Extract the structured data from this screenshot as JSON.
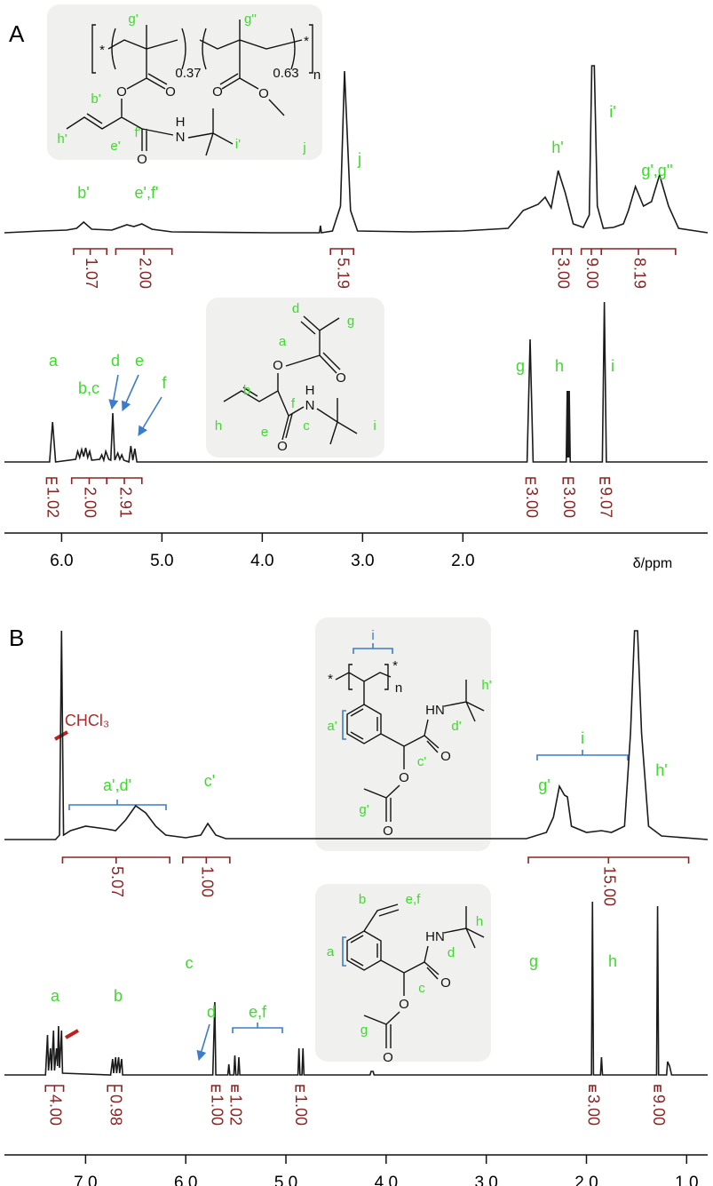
{
  "chart_data": [
    {
      "type": "line",
      "label": "A",
      "xlim": [
        6.57,
        -0.44
      ],
      "xticks": [
        {
          "value": 6,
          "label": "6.0"
        },
        {
          "value": 5,
          "label": "5.0"
        },
        {
          "value": 4,
          "label": "4.0"
        },
        {
          "value": 3,
          "label": "3.0"
        },
        {
          "value": 2,
          "label": "2.0"
        }
      ],
      "xlabel": "δ/ppm",
      "integral_color": "#8b2323",
      "series": [
        {
          "color": "#1a1a1a",
          "x": [
            6.57,
            6.2,
            5.95,
            5.85,
            5.78,
            5.7,
            5.5,
            5.35,
            5.28,
            5.2,
            5.1,
            4.9,
            3.9,
            3.43,
            3.42,
            3.41,
            3.3,
            3.22,
            3.18,
            3.12,
            3.05,
            2.5,
            2.0,
            1.55,
            1.45,
            1.4,
            1.25,
            1.18,
            1.12,
            1.05,
            0.98,
            0.9,
            0.8,
            0.74,
            0.715,
            0.69,
            0.66,
            0.6,
            0.5,
            0.4,
            0.35,
            0.28,
            0.2,
            0.12,
            0.04,
            -0.05,
            -0.15,
            -0.44
          ],
          "values": [
            0,
            2,
            3,
            5,
            12,
            4,
            3,
            9,
            7,
            10,
            4,
            1,
            0,
            0,
            8,
            0,
            2,
            30,
            182,
            25,
            2,
            1,
            2,
            5,
            18,
            25,
            32,
            40,
            28,
            70,
            45,
            10,
            6,
            20,
            188,
            188,
            30,
            5,
            6,
            10,
            25,
            52,
            30,
            35,
            65,
            30,
            5,
            0
          ],
          "integrals": [
            {
              "range": [
                5.88,
                5.55
              ],
              "value": 1.07
            },
            {
              "range": [
                5.46,
                4.9
              ],
              "value": 2,
              "label": "2.00"
            },
            {
              "range": [
                3.32,
                3.09
              ],
              "value": 5.19
            },
            {
              "range": [
                1.1,
                0.92
              ],
              "value": 3,
              "label": "3.00"
            },
            {
              "range": [
                0.82,
                0.62
              ],
              "value": 9,
              "label": "9.00"
            },
            {
              "range": [
                0.62,
                -0.12
              ],
              "value": 8.19
            }
          ],
          "annotations": [
            {
              "text": "b'",
              "color": "#3ddb2b"
            },
            {
              "text": "e',f'",
              "color": "#3ddb2b"
            },
            {
              "text": "j",
              "color": "#3ddb2b"
            },
            {
              "text": "h'",
              "color": "#3ddb2b"
            },
            {
              "text": "i'",
              "color": "#3ddb2b"
            },
            {
              "text": "g',g''",
              "color": "#3ddb2b"
            }
          ]
        },
        {
          "color": "#1a1a1a",
          "x": [
            6.57,
            6.12,
            6.09,
            6.06,
            5.86,
            5.84,
            5.82,
            5.8,
            5.78,
            5.76,
            5.74,
            5.72,
            5.7,
            5.62,
            5.6,
            5.58,
            5.56,
            5.53,
            5.51,
            5.49,
            5.47,
            5.44,
            5.42,
            5.4,
            5.38,
            5.33,
            5.31,
            5.29,
            5.27,
            5.25,
            1.36,
            1.33,
            1.3,
            0.97,
            0.96,
            0.955,
            0.95,
            0.945,
            0.94,
            0.93,
            0.61,
            0.59,
            0.57,
            -0.44
          ],
          "values": [
            0,
            0,
            45,
            0,
            3,
            12,
            5,
            14,
            6,
            16,
            5,
            12,
            2,
            3,
            8,
            2,
            12,
            3,
            2,
            55,
            2,
            10,
            3,
            8,
            2,
            0,
            18,
            2,
            15,
            0,
            0,
            138,
            0,
            0,
            80,
            5,
            80,
            5,
            80,
            0,
            0,
            180,
            0,
            0
          ],
          "integrals": [
            {
              "range": [
                6.15,
                6.05
              ],
              "value": 1.02
            },
            {
              "range": [
                5.9,
                5.55
              ],
              "value": 2,
              "label": "2.00"
            },
            {
              "range": [
                5.55,
                5.2
              ],
              "value": 2.91
            },
            {
              "range": [
                1.37,
                1.28
              ],
              "value": 3,
              "label": "3.00"
            },
            {
              "range": [
                1.0,
                0.9
              ],
              "value": 3,
              "label": "3.00"
            },
            {
              "range": [
                0.63,
                0.54
              ],
              "value": 9.07
            }
          ],
          "annotations": [
            {
              "text": "a",
              "color": "#3ddb2b"
            },
            {
              "text": "b,c",
              "color": "#3ddb2b"
            },
            {
              "text": "d",
              "color": "#3ddb2b"
            },
            {
              "text": "e",
              "color": "#3ddb2b"
            },
            {
              "text": "f",
              "color": "#3ddb2b"
            },
            {
              "text": "g",
              "color": "#3ddb2b"
            },
            {
              "text": "h",
              "color": "#3ddb2b"
            },
            {
              "text": "i",
              "color": "#3ddb2b"
            }
          ]
        }
      ]
    },
    {
      "type": "line",
      "label": "B",
      "xlim": [
        7.81,
        0.79
      ],
      "xticks": [
        {
          "value": 7,
          "label": "7.0"
        },
        {
          "value": 6,
          "label": "6.0"
        },
        {
          "value": 5,
          "label": "5.0"
        },
        {
          "value": 4,
          "label": "4.0"
        },
        {
          "value": 3,
          "label": "3.0"
        },
        {
          "value": 2,
          "label": "2.0"
        },
        {
          "value": 1,
          "label": "1.0"
        }
      ],
      "integral_color": "#8b2323",
      "series": [
        {
          "color": "#1a1a1a",
          "x": [
            7.81,
            7.3,
            7.26,
            7.24,
            7.22,
            7.15,
            7.0,
            6.8,
            6.7,
            6.6,
            6.5,
            6.4,
            6.3,
            6.2,
            6.0,
            5.85,
            5.78,
            5.7,
            5.6,
            2.6,
            2.4,
            2.33,
            2.27,
            2.22,
            2.19,
            2.15,
            2.0,
            1.85,
            1.75,
            1.62,
            1.56,
            1.52,
            1.49,
            1.45,
            1.38,
            1.25,
            0.79
          ],
          "values": [
            0,
            0,
            5,
            235,
            5,
            10,
            15,
            12,
            10,
            22,
            38,
            30,
            15,
            5,
            2,
            5,
            18,
            5,
            1,
            1,
            8,
            25,
            60,
            50,
            48,
            15,
            8,
            10,
            8,
            15,
            120,
            235,
            235,
            120,
            15,
            4,
            0
          ],
          "integrals": [
            {
              "range": [
                7.23,
                6.16
              ],
              "value": 5.07
            },
            {
              "range": [
                6.03,
                5.56
              ],
              "value": 1,
              "label": "1.00"
            },
            {
              "range": [
                2.58,
                0.98
              ],
              "value": 15,
              "label": "15.00"
            }
          ],
          "annotations": [
            {
              "text": "CHCl₃",
              "color": "#b22a2a"
            },
            {
              "text": "a',d'",
              "color": "#3ddb2b"
            },
            {
              "text": "c'",
              "color": "#3ddb2b"
            },
            {
              "text": "g'",
              "color": "#3ddb2b"
            },
            {
              "text": "i",
              "color": "#3ddb2b"
            },
            {
              "text": "h'",
              "color": "#3ddb2b"
            }
          ]
        },
        {
          "color": "#1a1a1a",
          "x": [
            7.81,
            7.4,
            7.38,
            7.37,
            7.35,
            7.34,
            7.32,
            7.31,
            7.29,
            7.28,
            7.27,
            7.26,
            7.24,
            7.23,
            6.75,
            6.73,
            6.72,
            6.7,
            6.69,
            6.67,
            6.66,
            6.64,
            6.63,
            5.73,
            5.71,
            5.7,
            5.58,
            5.57,
            5.56,
            5.52,
            5.51,
            5.5,
            5.48,
            5.47,
            5.46,
            4.88,
            4.87,
            4.86,
            4.84,
            4.83,
            4.82,
            4.16,
            4.15,
            4.13,
            4.12,
            1.95,
            1.94,
            1.93,
            1.86,
            1.85,
            1.84,
            1.3,
            1.29,
            1.28,
            1.2,
            1.19,
            1.17,
            1.15,
            0.79
          ],
          "values": [
            0,
            0,
            45,
            5,
            30,
            5,
            50,
            5,
            30,
            10,
            55,
            8,
            50,
            2,
            0,
            18,
            2,
            20,
            2,
            20,
            2,
            18,
            0,
            0,
            82,
            0,
            0,
            12,
            0,
            0,
            22,
            0,
            0,
            20,
            0,
            0,
            30,
            0,
            0,
            30,
            0,
            0,
            4,
            4,
            0,
            0,
            195,
            0,
            0,
            20,
            0,
            0,
            190,
            0,
            0,
            15,
            10,
            0,
            0
          ],
          "integrals": [
            {
              "range": [
                7.4,
                7.22
              ],
              "value": 4,
              "label": "4.00"
            },
            {
              "range": [
                6.78,
                6.64
              ],
              "value": 0.98
            },
            {
              "range": [
                5.74,
                5.66
              ],
              "value": 1,
              "label": "1.00"
            },
            {
              "range": [
                5.54,
                5.48
              ],
              "value": 1.02
            },
            {
              "range": [
                4.9,
                4.82
              ],
              "value": 1,
              "label": "1.00"
            },
            {
              "range": [
                1.97,
                1.91
              ],
              "value": 3,
              "label": "3.00"
            },
            {
              "range": [
                1.32,
                1.26
              ],
              "value": 9,
              "label": "9.00"
            }
          ],
          "annotations": [
            {
              "text": "a",
              "color": "#3ddb2b"
            },
            {
              "text": "b",
              "color": "#3ddb2b"
            },
            {
              "text": "c",
              "color": "#3ddb2b"
            },
            {
              "text": "d",
              "color": "#3ddb2b"
            },
            {
              "text": "e,f",
              "color": "#3ddb2b"
            },
            {
              "text": "g",
              "color": "#3ddb2b"
            },
            {
              "text": "h",
              "color": "#3ddb2b"
            }
          ]
        }
      ]
    }
  ],
  "structures": [
    {
      "labels": [
        {
          "text": "*",
          "color": "#111"
        },
        {
          "text": "g'",
          "color": "#3ddb2b"
        },
        {
          "text": "g''",
          "color": "#3ddb2b"
        },
        {
          "text": "*",
          "color": "#111"
        },
        {
          "text": "0.37",
          "color": "#111"
        },
        {
          "text": "0.63",
          "color": "#111"
        },
        {
          "text": "n",
          "color": "#111"
        },
        {
          "text": "O",
          "color": "#111"
        },
        {
          "text": "O",
          "color": "#111"
        },
        {
          "text": "O",
          "color": "#111"
        },
        {
          "text": "O",
          "color": "#111"
        },
        {
          "text": "b'",
          "color": "#3ddb2b"
        },
        {
          "text": "h'",
          "color": "#3ddb2b"
        },
        {
          "text": "e'",
          "color": "#3ddb2b"
        },
        {
          "text": "f'",
          "color": "#3ddb2b"
        },
        {
          "text": "H",
          "color": "#111"
        },
        {
          "text": "N",
          "color": "#111"
        },
        {
          "text": "i'",
          "color": "#3ddb2b"
        },
        {
          "text": "j",
          "color": "#3ddb2b"
        },
        {
          "text": "O",
          "color": "#111"
        }
      ]
    },
    {
      "labels": [
        {
          "text": "d",
          "color": "#3ddb2b"
        },
        {
          "text": "g",
          "color": "#3ddb2b"
        },
        {
          "text": "a",
          "color": "#3ddb2b"
        },
        {
          "text": "O",
          "color": "#111"
        },
        {
          "text": "O",
          "color": "#111"
        },
        {
          "text": "b",
          "color": "#3ddb2b"
        },
        {
          "text": "H",
          "color": "#111"
        },
        {
          "text": "N",
          "color": "#111"
        },
        {
          "text": "f",
          "color": "#3ddb2b"
        },
        {
          "text": "c",
          "color": "#3ddb2b"
        },
        {
          "text": "h",
          "color": "#3ddb2b"
        },
        {
          "text": "e",
          "color": "#3ddb2b"
        },
        {
          "text": "O",
          "color": "#111"
        },
        {
          "text": "i",
          "color": "#3ddb2b"
        }
      ]
    },
    {
      "labels": [
        {
          "text": "*",
          "color": "#111"
        },
        {
          "text": "*",
          "color": "#111"
        },
        {
          "text": "n",
          "color": "#111"
        },
        {
          "text": "i",
          "color": "#3d7cc9"
        },
        {
          "text": "a'",
          "color": "#3ddb2b"
        },
        {
          "text": "h'",
          "color": "#3ddb2b"
        },
        {
          "text": "d'",
          "color": "#3ddb2b"
        },
        {
          "text": "HN",
          "color": "#111"
        },
        {
          "text": "c'",
          "color": "#3ddb2b"
        },
        {
          "text": "O",
          "color": "#111"
        },
        {
          "text": "O",
          "color": "#111"
        },
        {
          "text": "g'",
          "color": "#3ddb2b"
        },
        {
          "text": "O",
          "color": "#111"
        }
      ]
    },
    {
      "labels": [
        {
          "text": "b",
          "color": "#3ddb2b"
        },
        {
          "text": "e,f",
          "color": "#3ddb2b"
        },
        {
          "text": "h",
          "color": "#3ddb2b"
        },
        {
          "text": "d",
          "color": "#3ddb2b"
        },
        {
          "text": "HN",
          "color": "#111"
        },
        {
          "text": "a",
          "color": "#3ddb2b"
        },
        {
          "text": "c",
          "color": "#3ddb2b"
        },
        {
          "text": "O",
          "color": "#111"
        },
        {
          "text": "O",
          "color": "#111"
        },
        {
          "text": "g",
          "color": "#3ddb2b"
        },
        {
          "text": "O",
          "color": "#111"
        }
      ]
    }
  ]
}
